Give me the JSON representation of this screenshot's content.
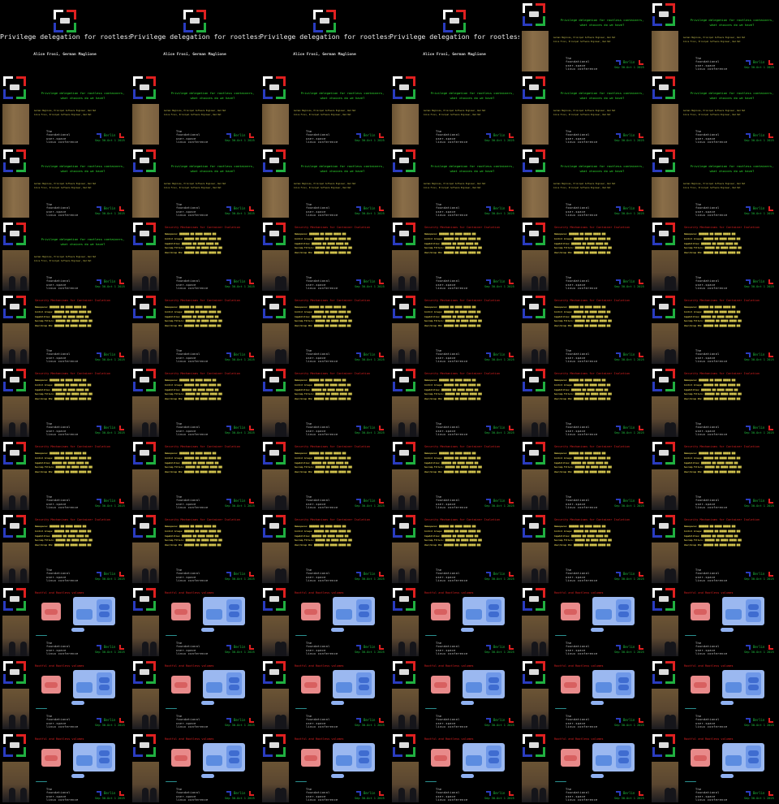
{
  "talk": {
    "title": "Privilege delegation for rootless containers, what choices do we have?",
    "authors": "Alice Frosi, German Maglione",
    "speakers_line1": "German Maglione, Principal Software Engineer, Red Hat",
    "speakers_line2": "Alice Frosi, Principal Software Engineer, Red Hat"
  },
  "conference": {
    "footer": "The\nfoundational\nuser-space\nlinux conference",
    "city": "Berlin",
    "dates": "Sep 30-Oct 1 2025",
    "colors": {
      "white": "#ffffff",
      "red": "#e02020",
      "blue": "#2a3cc0",
      "green": "#20b040"
    }
  },
  "slides": {
    "security": {
      "heading": "Security Mechanisms for Container Isolation",
      "bullets": [
        "Namespaces:",
        "Control Groups:",
        "Capabilities:",
        "Seccomp Filters:",
        "User/Group IDs:"
      ]
    },
    "volumes": {
      "heading": "Rootful and Rootless volumes"
    }
  },
  "frames": [
    "cover",
    "cover",
    "cover",
    "cover",
    "title",
    "title",
    "title",
    "title",
    "title",
    "title",
    "title",
    "title",
    "title",
    "title",
    "title",
    "title",
    "title",
    "title",
    "title",
    "security",
    "security",
    "security",
    "security",
    "security",
    "security",
    "security",
    "security",
    "security",
    "security",
    "security",
    "security",
    "security",
    "security",
    "security",
    "security",
    "security",
    "security",
    "security",
    "security",
    "security",
    "security",
    "security",
    "security",
    "security",
    "security",
    "security",
    "security",
    "security",
    "volumes",
    "volumes",
    "volumes",
    "volumes",
    "volumes",
    "volumes",
    "volumes",
    "volumes",
    "volumes",
    "volumes",
    "volumes",
    "volumes",
    "volumes",
    "volumes",
    "volumes",
    "volumes",
    "volumes",
    "volumes"
  ]
}
